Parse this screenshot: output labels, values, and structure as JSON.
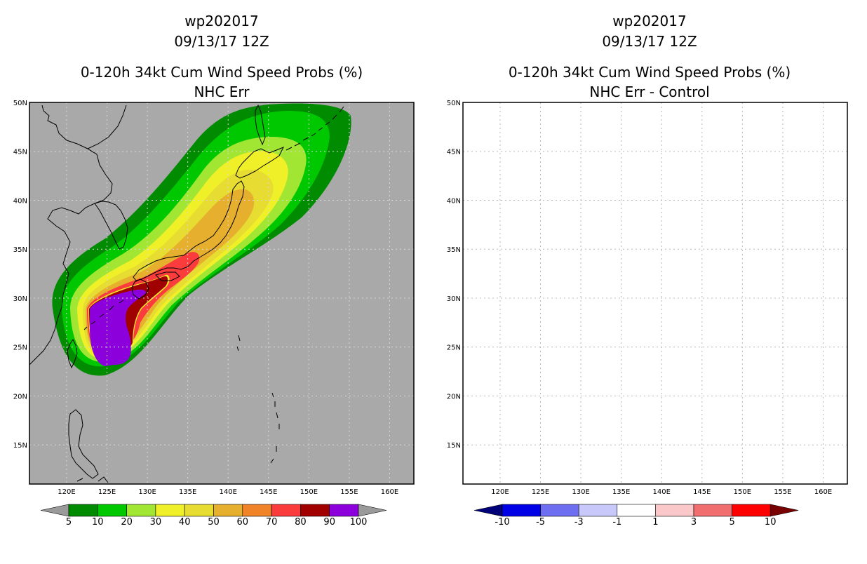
{
  "left_panel": {
    "storm_id": "wp202017",
    "datetime": "09/13/17 12Z",
    "product": "0-120h 34kt Cum Wind Speed Probs (%)",
    "subtitle": "NHC Err",
    "background_color": "#a9a9a9",
    "colorbar": {
      "labels": [
        "5",
        "10",
        "20",
        "30",
        "40",
        "50",
        "60",
        "70",
        "80",
        "90",
        "100"
      ],
      "colors": [
        "#9a9a9a",
        "#008b00",
        "#00c800",
        "#a0e632",
        "#f0f028",
        "#e6dc32",
        "#e6af2d",
        "#f08228",
        "#fa3c3c",
        "#a00000",
        "#8c00dc",
        "#9a9a9a"
      ]
    }
  },
  "right_panel": {
    "storm_id": "wp202017",
    "datetime": "09/13/17 12Z",
    "product": "0-120h 34kt Cum Wind Speed Probs (%)",
    "subtitle": "NHC Err - Control",
    "background_color": "#ffffff",
    "colorbar": {
      "labels": [
        "-10",
        "-5",
        "-3",
        "-1",
        "1",
        "3",
        "5",
        "10"
      ],
      "colors": [
        "#000078",
        "#0000e6",
        "#6e6ef0",
        "#c8c8fa",
        "#ffffff",
        "#fac8c8",
        "#f06e6e",
        "#ff0000",
        "#780000"
      ]
    }
  },
  "map": {
    "lon_labels": [
      "120E",
      "125E",
      "130E",
      "135E",
      "140E",
      "145E",
      "150E",
      "155E",
      "160E"
    ],
    "lat_labels": [
      "50N",
      "45N",
      "40N",
      "35N",
      "30N",
      "25N",
      "20N",
      "15N"
    ],
    "lon_range": [
      115.4,
      163.0
    ],
    "lat_range": [
      11.0,
      50.0
    ]
  }
}
